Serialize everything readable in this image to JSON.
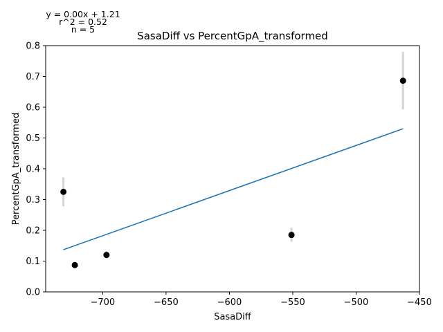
{
  "chart_data": {
    "type": "scatter",
    "title": "SasaDiff vs PercentGpA_transformed",
    "xlabel": "SasaDiff",
    "ylabel": "PercentGpA_transformed",
    "xlim": [
      -745,
      -450
    ],
    "ylim": [
      0.0,
      0.8
    ],
    "xticks": [
      -700,
      -650,
      -600,
      -550,
      -500,
      -450
    ],
    "xtick_labels": [
      "−700",
      "−650",
      "−600",
      "−550",
      "−500",
      "−450"
    ],
    "yticks": [
      0.0,
      0.1,
      0.2,
      0.3,
      0.4,
      0.5,
      0.6,
      0.7,
      0.8
    ],
    "ytick_labels": [
      "0.0",
      "0.1",
      "0.2",
      "0.3",
      "0.4",
      "0.5",
      "0.6",
      "0.7",
      "0.8"
    ],
    "grid": false,
    "points": [
      {
        "x": -731,
        "y": 0.325,
        "err_low": 0.278,
        "err_high": 0.372
      },
      {
        "x": -722,
        "y": 0.087,
        "err_low": 0.08,
        "err_high": 0.094
      },
      {
        "x": -697,
        "y": 0.12,
        "err_low": 0.108,
        "err_high": 0.133
      },
      {
        "x": -551,
        "y": 0.185,
        "err_low": 0.163,
        "err_high": 0.208
      },
      {
        "x": -463,
        "y": 0.686,
        "err_low": 0.593,
        "err_high": 0.78
      }
    ],
    "fit_line": {
      "x": [
        -731,
        -463
      ],
      "y": [
        0.137,
        0.53
      ]
    },
    "annotations": {
      "equation": "y = 0.00x + 1.21",
      "r2": "r^2 = 0.52",
      "n": "n = 5"
    },
    "colors": {
      "points": "#000000",
      "errorbars": "#d3d3d3",
      "fit": "#1f77b4"
    }
  }
}
